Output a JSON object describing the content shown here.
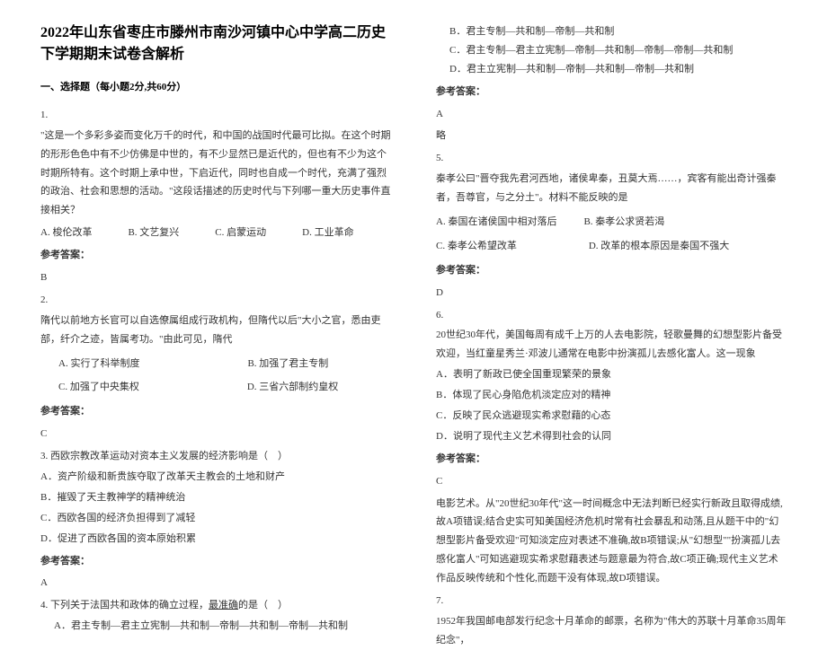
{
  "title": "2022年山东省枣庄市滕州市南沙河镇中心中学高二历史下学期期末试卷含解析",
  "section1": "一、选择题（每小题2分,共60分）",
  "q1": {
    "num": "1.",
    "text": "\"这是一个多彩多姿而变化万千的时代，和中国的战国时代最可比拟。在这个时期的形形色色中有不少仿佛是中世的，有不少显然已是近代的，但也有不少为这个时期所特有。这个时期上承中世，下启近代，同时也自成一个时代，充满了强烈的政治、社会和思想的活动。\"这段话描述的历史时代与下列哪一重大历史事件直接相关？",
    "a": "A. 梭伦改革",
    "b": "B. 文艺复兴",
    "c": "C. 启蒙运动",
    "d": "D. 工业革命",
    "ansLabel": "参考答案：",
    "ans": "B"
  },
  "q2": {
    "num": "2.",
    "text": "隋代以前地方长官可以自选僚属组成行政机构，但隋代以后\"大小之官，悉由吏部，纤介之迹，皆属考功。\"由此可见，隋代",
    "a": "A. 实行了科举制度",
    "b": "B. 加强了君主专制",
    "c": "C. 加强了中央集权",
    "d": "D. 三省六部制约皇权",
    "ansLabel": "参考答案：",
    "ans": "C"
  },
  "q3": {
    "num": "3. 西欧宗教改革运动对资本主义发展的经济影响是（　）",
    "a": "A．资产阶级和新贵族夺取了改革天主教会的土地和财产",
    "b": "B．摧毁了天主教神学的精神统治",
    "c": "C．西欧各国的经济负担得到了减轻",
    "d": "D．促进了西欧各国的资本原始积累",
    "ansLabel": "参考答案：",
    "ans": "A"
  },
  "q4": {
    "num": "4. 下列关于法国共和政体的确立过程，",
    "num2": "的是（　）",
    "underlined": "最准确",
    "a": "A．君主专制—君主立宪制—共和制—帝制—共和制—帝制—共和制",
    "b": "B．君主专制—共和制—帝制—共和制",
    "c": "C．君主专制—君主立宪制—帝制—共和制—帝制—帝制—共和制",
    "d": "D．君主立宪制—共和制—帝制—共和制—帝制—共和制",
    "ansLabel": "参考答案：",
    "ans": "A",
    "brief": "略"
  },
  "q5": {
    "num": "5.",
    "text": "秦孝公曰\"晋夺我先君河西地，诸侯卑秦，丑莫大焉……，宾客有能出奇计强秦者，吾尊官，与之分土\"。材料不能反映的是",
    "a": "A. 秦国在诸侯国中相对落后",
    "b": "B. 秦孝公求贤若渴",
    "c": "C. 秦孝公希望改革",
    "d": "D. 改革的根本原因是秦国不强大",
    "ansLabel": "参考答案：",
    "ans": "D"
  },
  "q6": {
    "num": "6.",
    "text": "20世纪30年代，美国每周有成千上万的人去电影院，轻歌曼舞的幻想型影片备受欢迎，当红童星秀兰·邓波儿通常在电影中扮演孤儿去感化富人。这一现象",
    "a": "A．表明了新政已使全国重现繁荣的景象",
    "b": "B．体现了民心身陷危机淡定应对的精神",
    "c": "C．反映了民众逃避现实希求慰藉的心态",
    "d": "D．说明了现代主义艺术得到社会的认同",
    "ansLabel": "参考答案：",
    "ans": "C",
    "exp": "电影艺术。从\"20世纪30年代\"这一时间概念中无法判断已经实行新政且取得成绩,故A项错误;结合史实可知美国经济危机时常有社会暴乱和动荡,且从题干中的\"幻想型影片备受欢迎\"可知淡定应对表述不准确,故B项错误;从\"幻想型\"\"扮演孤儿去感化富人\"可知逃避现实希求慰藉表述与题意最为符合,故C项正确;现代主义艺术作品反映传统和个性化,而题干没有体现,故D项错误。"
  },
  "q7": {
    "num": "7.",
    "text": "1952年我国邮电部发行纪念十月革命的邮票，名称为\"伟大的苏联十月革命35周年纪念\"，"
  }
}
